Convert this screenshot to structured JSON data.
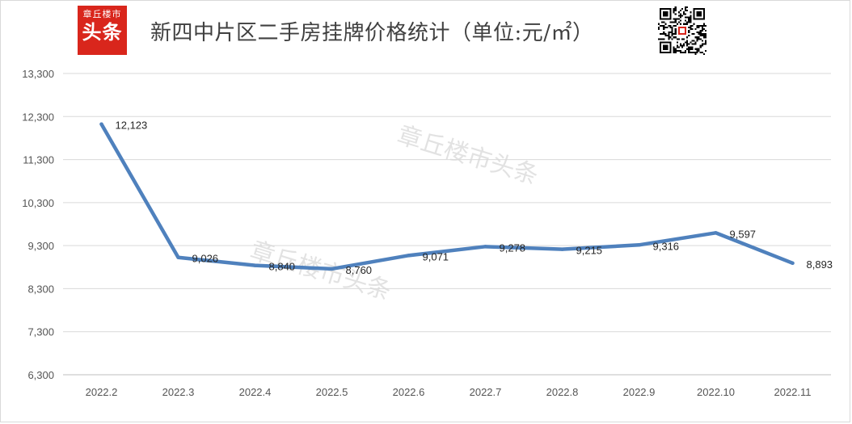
{
  "header": {
    "title": "新四中片区二手房挂牌价格统计（单位:元/㎡）",
    "logo_top": "章丘楼市",
    "logo_main": "头条"
  },
  "watermark": "章丘楼市头条",
  "colors": {
    "line": "#4f81bd",
    "grid": "#d9d9d9",
    "logo_bg": "#d9261c"
  },
  "icons": [
    "qr-code-icon"
  ],
  "chart_data": {
    "type": "line",
    "title": "新四中片区二手房挂牌价格统计（单位:元/㎡）",
    "xlabel": "",
    "ylabel": "",
    "categories": [
      "2022.2",
      "2022.3",
      "2022.4",
      "2022.5",
      "2022.6",
      "2022.7",
      "2022.8",
      "2022.9",
      "2022.10",
      "2022.11"
    ],
    "series": [
      {
        "name": "",
        "values": [
          12123,
          9026,
          8840,
          8760,
          9071,
          9278,
          9215,
          9316,
          9597,
          8893
        ],
        "labels": [
          "12,123",
          "9,026",
          "8,840",
          "8,760",
          "9,071",
          "9,278",
          "9,215",
          "9,316",
          "9,597",
          "8,893"
        ]
      }
    ],
    "ylim": [
      6300,
      13300
    ],
    "yticks": [
      6300,
      7300,
      8300,
      9300,
      10300,
      11300,
      12300,
      13300
    ],
    "ytick_labels": [
      "6,300",
      "7,300",
      "8,300",
      "9,300",
      "10,300",
      "11,300",
      "12,300",
      "13,300"
    ],
    "grid": true,
    "legend": "none"
  }
}
